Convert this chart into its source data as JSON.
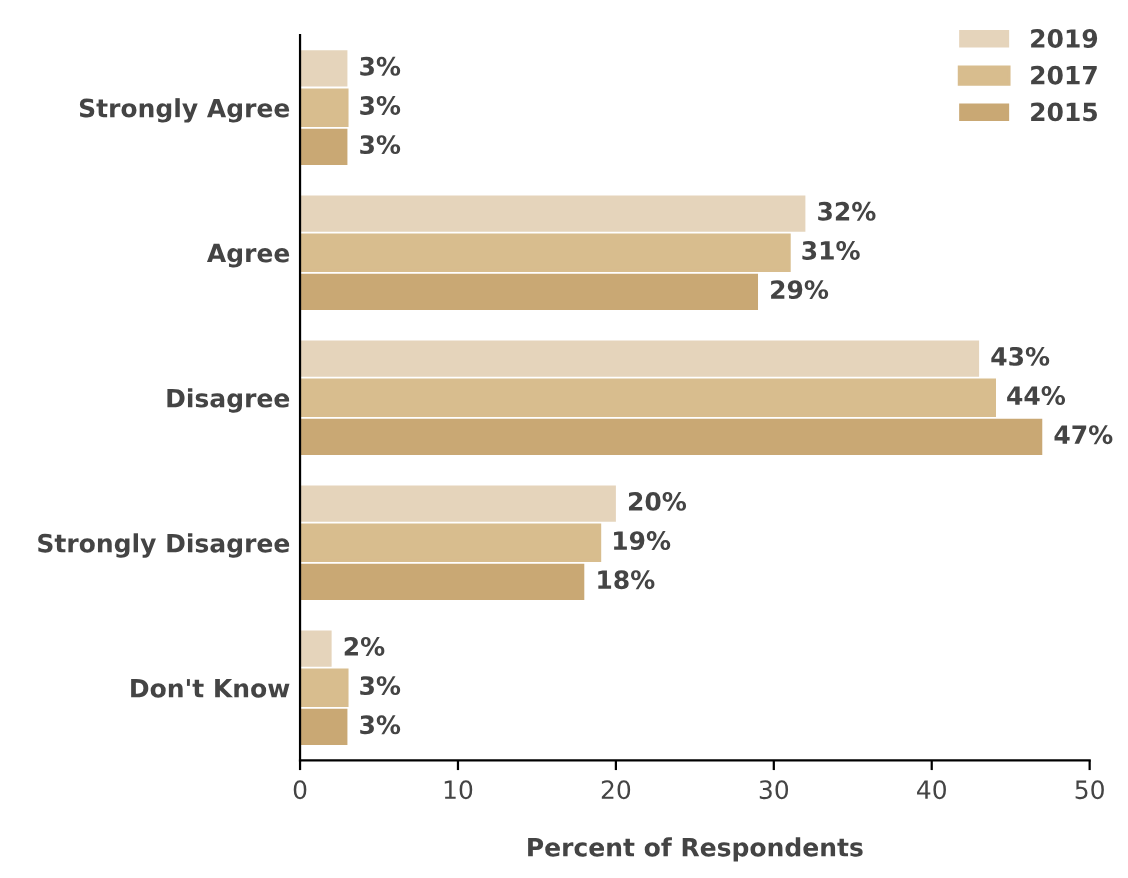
{
  "chart_data": {
    "type": "bar",
    "orientation": "horizontal",
    "xlabel": "Percent of Respondents",
    "categories": [
      "Strongly Agree",
      "Agree",
      "Disagree",
      "Strongly Disagree",
      "Don't Know"
    ],
    "series": [
      {
        "name": "2019",
        "color": "#e5d4bb",
        "values": [
          3,
          32,
          43,
          20,
          2
        ],
        "value_labels": [
          "3%",
          "32%",
          "43%",
          "20%",
          "2%"
        ]
      },
      {
        "name": "2017",
        "color": "#d8bd8e",
        "values": [
          3,
          31,
          44,
          19,
          3
        ],
        "value_labels": [
          "3%",
          "31%",
          "44%",
          "19%",
          "3%"
        ]
      },
      {
        "name": "2015",
        "color": "#c9a874",
        "values": [
          3,
          29,
          47,
          18,
          3
        ],
        "value_labels": [
          "3%",
          "29%",
          "47%",
          "18%",
          "3%"
        ]
      }
    ],
    "xlim": [
      0,
      50
    ],
    "xticks": [
      0,
      10,
      20,
      30,
      40,
      50
    ],
    "grid": false,
    "legend": "top right"
  }
}
